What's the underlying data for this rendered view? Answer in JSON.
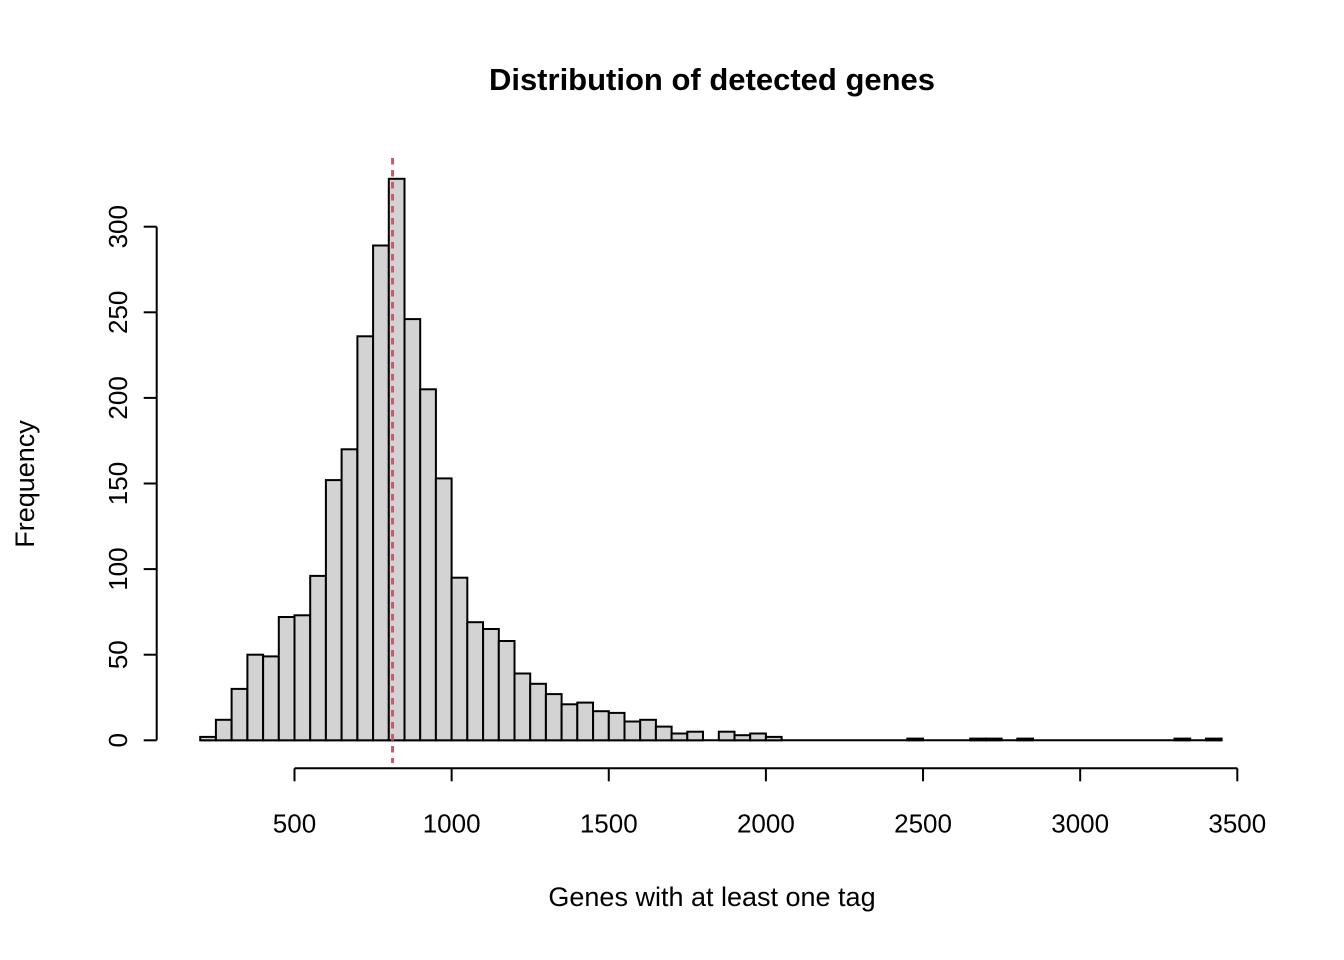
{
  "title": "Distribution of detected genes",
  "chart_data": {
    "type": "bar",
    "subtype": "histogram",
    "title": "Distribution of detected genes",
    "xlabel": "Genes with at least one tag",
    "ylabel": "Frequency",
    "bin_start": 200,
    "bin_width": 50,
    "counts": [
      2,
      12,
      30,
      50,
      49,
      72,
      73,
      96,
      152,
      170,
      236,
      289,
      328,
      246,
      205,
      153,
      95,
      69,
      65,
      58,
      39,
      33,
      27,
      21,
      22,
      17,
      16,
      11,
      12,
      8,
      4,
      5,
      0,
      5,
      3,
      4,
      2,
      0,
      0,
      0,
      0,
      0,
      0,
      0,
      0,
      1,
      0,
      0,
      0,
      1,
      1,
      0,
      1,
      0,
      0,
      0,
      0,
      0,
      0,
      0,
      0,
      0,
      1,
      0,
      1
    ],
    "x_ticks": [
      500,
      1000,
      1500,
      2000,
      2500,
      3000,
      3500
    ],
    "y_ticks": [
      0,
      50,
      100,
      150,
      200,
      250,
      300
    ],
    "xlim": [
      200,
      3500
    ],
    "ylim": [
      0,
      328
    ],
    "grid": false,
    "legend": null,
    "annotations": [
      {
        "type": "vline",
        "x": 812,
        "style": "dotted",
        "color": "#e04f5f"
      }
    ],
    "bar_fill": "#d3d3d3",
    "bar_stroke": "#000000",
    "axis_color": "#000000"
  }
}
